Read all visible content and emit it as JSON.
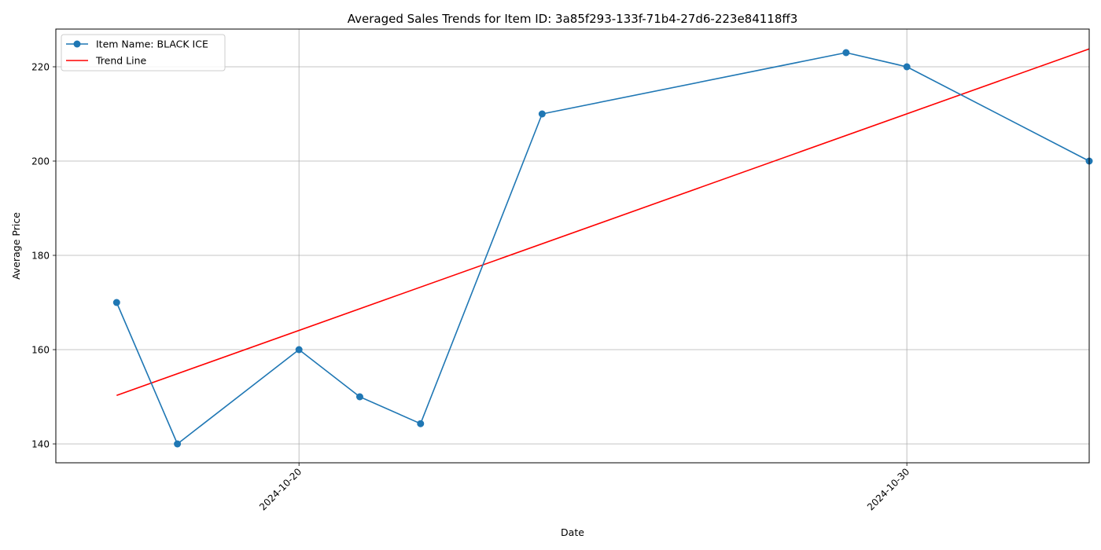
{
  "chart_data": {
    "type": "line",
    "title": "Averaged Sales Trends for Item ID: 3a85f293-133f-71b4-27d6-223e84118ff3",
    "xlabel": "Date",
    "ylabel": "Average Price",
    "x_axis_type": "date",
    "xlim": [
      "2024-10-16",
      "2024-11-02"
    ],
    "ylim": [
      136,
      228
    ],
    "x_ticks": [
      "2024-10-20",
      "2024-10-30"
    ],
    "y_ticks": [
      140,
      160,
      180,
      200,
      220
    ],
    "grid": true,
    "legend_position": "top-left",
    "series": [
      {
        "name": "Item Name: BLACK ICE",
        "color": "#1f77b4",
        "marker": "circle",
        "x": [
          "2024-10-17",
          "2024-10-18",
          "2024-10-20",
          "2024-10-21",
          "2024-10-22",
          "2024-10-24",
          "2024-10-29",
          "2024-10-30",
          "2024-11-02"
        ],
        "y": [
          170,
          140,
          160,
          150,
          144.3,
          210,
          223,
          220,
          200
        ]
      },
      {
        "name": "Trend Line",
        "color": "#ff0000",
        "marker": "none",
        "x": [
          "2024-10-17",
          "2024-11-02"
        ],
        "y": [
          150.3,
          223.8
        ]
      }
    ]
  }
}
